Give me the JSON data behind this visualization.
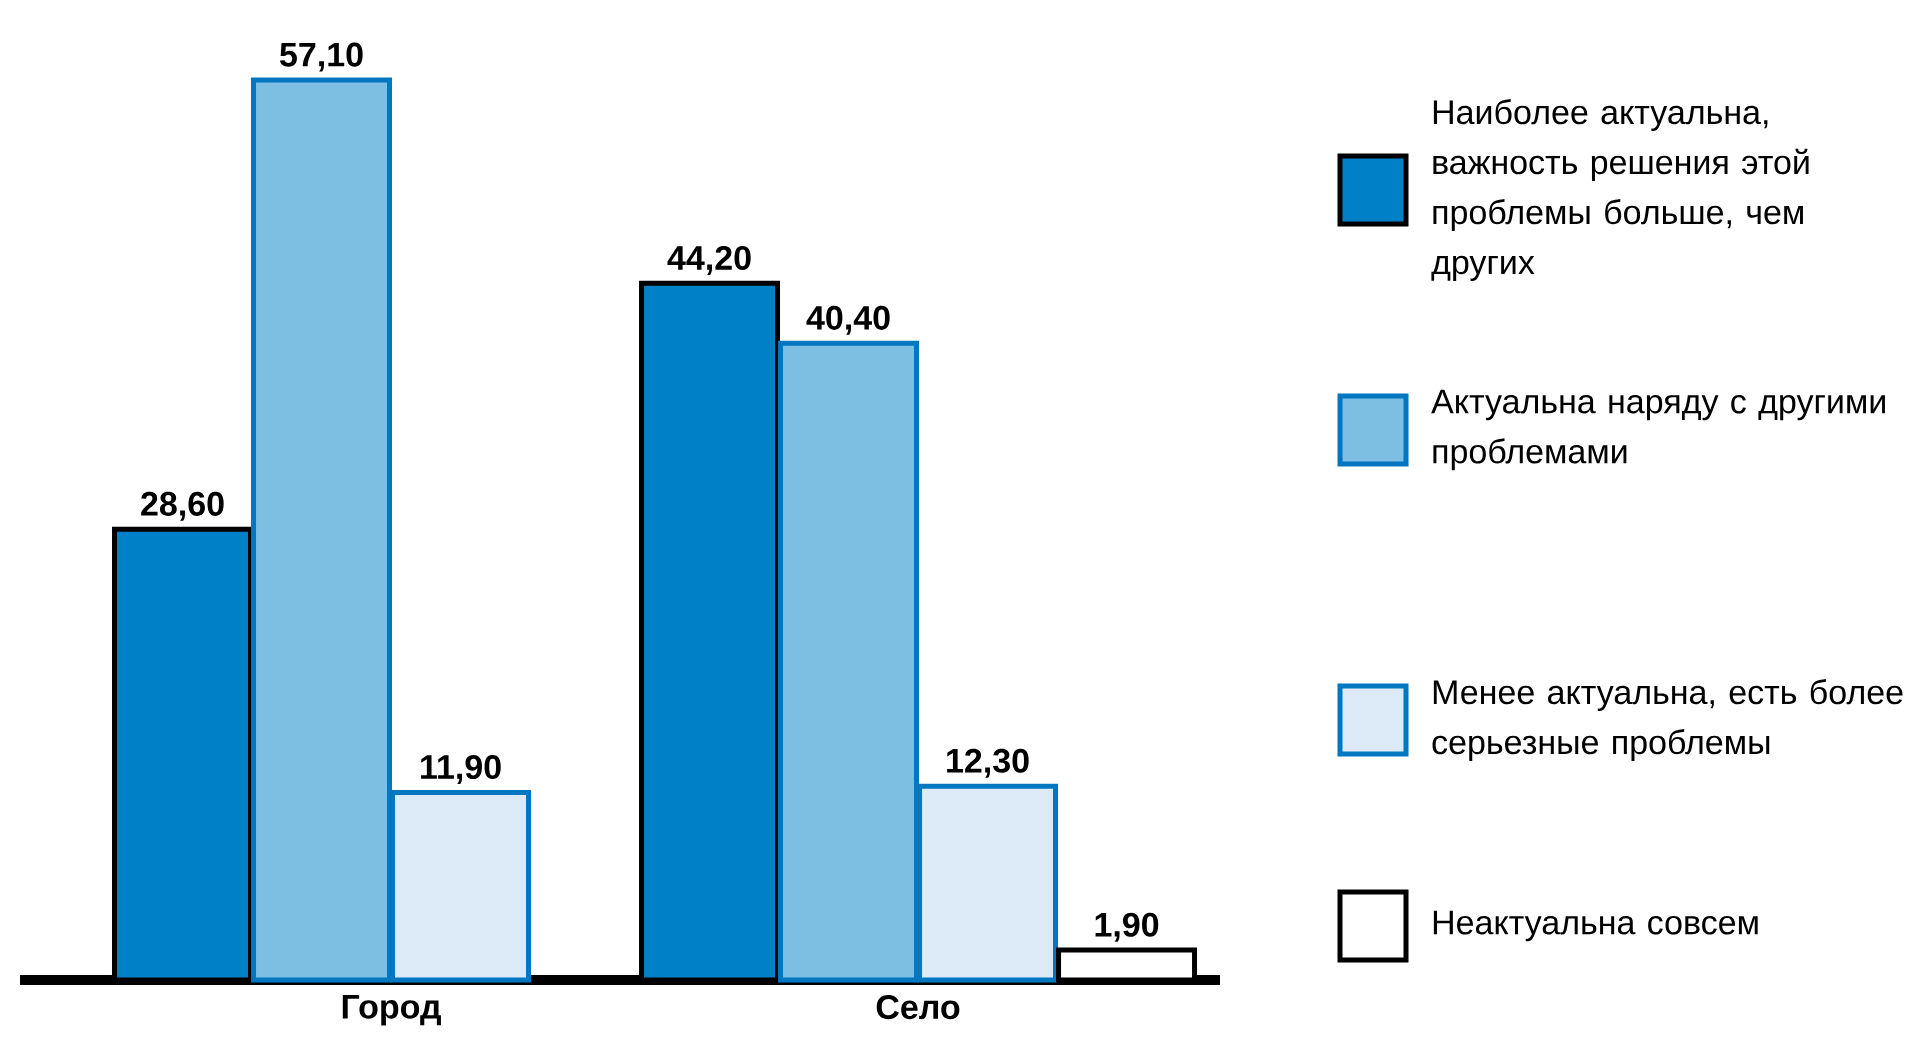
{
  "chart_data": {
    "type": "bar",
    "categories": [
      "Город",
      "Село"
    ],
    "legend": "right",
    "series": [
      {
        "name": "Наиболее актуальна, важность решения этой проблемы больше, чем других",
        "color": "#0080c6",
        "values": [
          28.6,
          44.2
        ],
        "value_labels": [
          "28,60",
          "44,20"
        ]
      },
      {
        "name": "Актуальна наряду с другими проблемами",
        "color": "#7dbfe3",
        "values": [
          57.1,
          40.4
        ],
        "value_labels": [
          "57,10",
          "40,40"
        ]
      },
      {
        "name": "Менее актуальна, есть более серьезные проблемы",
        "color": "#dbeaf6",
        "values": [
          11.9,
          12.3
        ],
        "value_labels": [
          "11,90",
          "12,30"
        ]
      },
      {
        "name": "Неактуальна совсем",
        "color": "#ffffff",
        "values": [
          null,
          1.9
        ],
        "value_labels": [
          null,
          "1,90"
        ]
      }
    ]
  }
}
